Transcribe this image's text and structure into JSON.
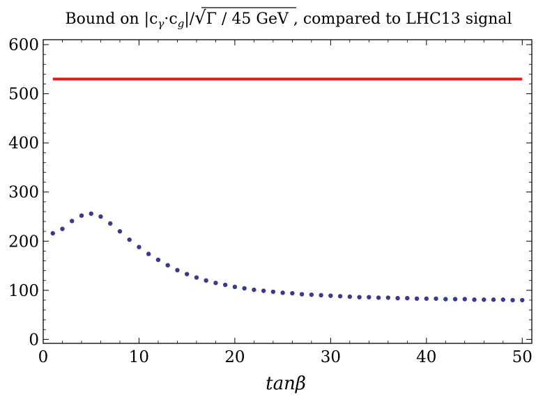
{
  "chart_data": {
    "type": "scatter",
    "title": {
      "prefix": "Bound on |c",
      "sub1": "γ",
      "dot": "·c",
      "sub2": "g",
      "mid": "|/",
      "radical": "√",
      "radicand": "Γ / 45 GeV",
      "suffix": " , compared to LHC13 signal"
    },
    "xlabel": "tanβ",
    "ylabel": "",
    "xlim": [
      0,
      51
    ],
    "ylim": [
      -8,
      610
    ],
    "xticks": [
      0,
      10,
      20,
      30,
      40,
      50
    ],
    "yticks": [
      0,
      100,
      200,
      300,
      400,
      500,
      600
    ],
    "grid": false,
    "series": [
      {
        "style": "dotted",
        "color": "#3a3a8c",
        "points": [
          [
            1,
            216
          ],
          [
            2,
            225
          ],
          [
            3,
            241
          ],
          [
            4,
            252
          ],
          [
            5,
            256
          ],
          [
            6,
            250
          ],
          [
            7,
            236
          ],
          [
            8,
            220
          ],
          [
            9,
            203
          ],
          [
            10,
            188
          ],
          [
            11,
            174
          ],
          [
            12,
            162
          ],
          [
            13,
            151
          ],
          [
            14,
            141
          ],
          [
            15,
            133
          ],
          [
            16,
            126
          ],
          [
            17,
            120
          ],
          [
            18,
            115
          ],
          [
            19,
            111
          ],
          [
            20,
            107
          ],
          [
            21,
            104
          ],
          [
            22,
            101
          ],
          [
            23,
            99
          ],
          [
            24,
            97
          ],
          [
            25,
            95
          ],
          [
            26,
            94
          ],
          [
            27,
            92
          ],
          [
            28,
            91
          ],
          [
            29,
            90
          ],
          [
            30,
            89
          ],
          [
            31,
            88
          ],
          [
            32,
            87
          ],
          [
            33,
            86
          ],
          [
            34,
            86
          ],
          [
            35,
            85
          ],
          [
            36,
            85
          ],
          [
            37,
            84
          ],
          [
            38,
            84
          ],
          [
            39,
            83
          ],
          [
            40,
            83
          ],
          [
            41,
            83
          ],
          [
            42,
            82
          ],
          [
            43,
            82
          ],
          [
            44,
            82
          ],
          [
            45,
            81
          ],
          [
            46,
            81
          ],
          [
            47,
            81
          ],
          [
            48,
            81
          ],
          [
            49,
            80
          ],
          [
            50,
            80
          ]
        ]
      },
      {
        "style": "line",
        "color": "#e31a1c",
        "points": [
          [
            1,
            530
          ],
          [
            50,
            530
          ]
        ]
      }
    ]
  }
}
